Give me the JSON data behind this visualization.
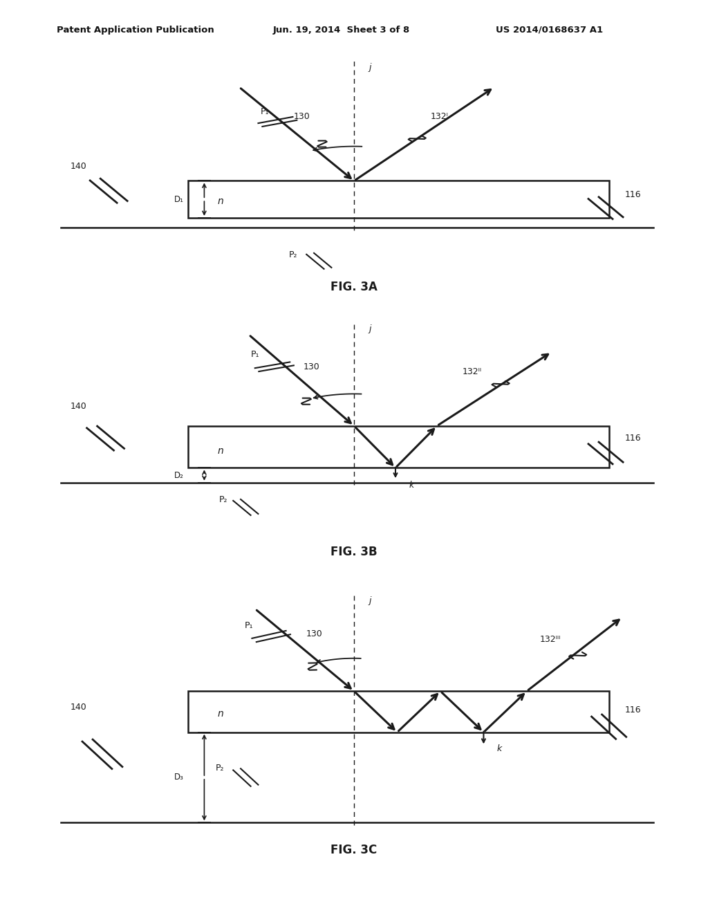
{
  "header_left": "Patent Application Publication",
  "header_center": "Jun. 19, 2014  Sheet 3 of 8",
  "header_right": "US 2014/0168637 A1",
  "background_color": "#ffffff",
  "line_color": "#1a1a1a"
}
